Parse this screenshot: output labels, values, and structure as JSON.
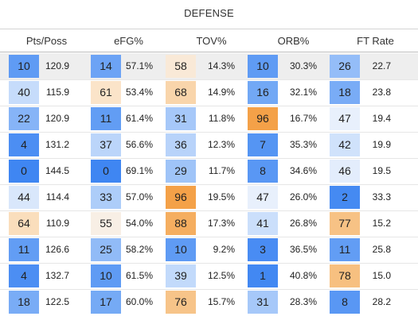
{
  "title": "DEFENSE",
  "columns": [
    "Pts/Poss",
    "eFG%",
    "TOV%",
    "ORB%",
    "FT Rate"
  ],
  "highlight_row": 0,
  "rows": [
    [
      {
        "rank": "10",
        "value": "120.9"
      },
      {
        "rank": "14",
        "value": "57.1%"
      },
      {
        "rank": "58",
        "value": "14.3%"
      },
      {
        "rank": "10",
        "value": "30.3%"
      },
      {
        "rank": "26",
        "value": "22.7"
      }
    ],
    [
      {
        "rank": "40",
        "value": "115.9"
      },
      {
        "rank": "61",
        "value": "53.4%"
      },
      {
        "rank": "68",
        "value": "14.9%"
      },
      {
        "rank": "16",
        "value": "32.1%"
      },
      {
        "rank": "18",
        "value": "23.8"
      }
    ],
    [
      {
        "rank": "22",
        "value": "120.9"
      },
      {
        "rank": "11",
        "value": "61.4%"
      },
      {
        "rank": "31",
        "value": "11.8%"
      },
      {
        "rank": "96",
        "value": "16.7%"
      },
      {
        "rank": "47",
        "value": "19.4"
      }
    ],
    [
      {
        "rank": "4",
        "value": "131.2"
      },
      {
        "rank": "37",
        "value": "56.6%"
      },
      {
        "rank": "36",
        "value": "12.3%"
      },
      {
        "rank": "7",
        "value": "35.3%"
      },
      {
        "rank": "42",
        "value": "19.9"
      }
    ],
    [
      {
        "rank": "0",
        "value": "144.5"
      },
      {
        "rank": "0",
        "value": "69.1%"
      },
      {
        "rank": "29",
        "value": "11.7%"
      },
      {
        "rank": "8",
        "value": "34.6%"
      },
      {
        "rank": "46",
        "value": "19.5"
      }
    ],
    [
      {
        "rank": "44",
        "value": "114.4"
      },
      {
        "rank": "33",
        "value": "57.0%"
      },
      {
        "rank": "96",
        "value": "19.5%"
      },
      {
        "rank": "47",
        "value": "26.0%"
      },
      {
        "rank": "2",
        "value": "33.3"
      }
    ],
    [
      {
        "rank": "64",
        "value": "110.9"
      },
      {
        "rank": "55",
        "value": "54.0%"
      },
      {
        "rank": "88",
        "value": "17.3%"
      },
      {
        "rank": "41",
        "value": "26.8%"
      },
      {
        "rank": "77",
        "value": "15.2"
      }
    ],
    [
      {
        "rank": "11",
        "value": "126.6"
      },
      {
        "rank": "25",
        "value": "58.2%"
      },
      {
        "rank": "10",
        "value": "9.2%"
      },
      {
        "rank": "3",
        "value": "36.5%"
      },
      {
        "rank": "11",
        "value": "25.8"
      }
    ],
    [
      {
        "rank": "4",
        "value": "132.7"
      },
      {
        "rank": "10",
        "value": "61.5%"
      },
      {
        "rank": "39",
        "value": "12.5%"
      },
      {
        "rank": "1",
        "value": "40.8%"
      },
      {
        "rank": "78",
        "value": "15.0"
      }
    ],
    [
      {
        "rank": "18",
        "value": "122.5"
      },
      {
        "rank": "17",
        "value": "60.0%"
      },
      {
        "rank": "76",
        "value": "15.7%"
      },
      {
        "rank": "31",
        "value": "28.3%"
      },
      {
        "rank": "8",
        "value": "28.2"
      }
    ]
  ]
}
